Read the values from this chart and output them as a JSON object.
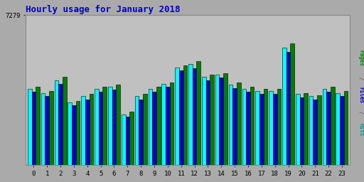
{
  "title": "Hourly usage for January 2018",
  "title_color": "#0000cc",
  "title_fontsize": 9,
  "hours": [
    0,
    1,
    2,
    3,
    4,
    5,
    6,
    7,
    8,
    9,
    10,
    11,
    12,
    13,
    14,
    15,
    16,
    17,
    18,
    19,
    20,
    21,
    22,
    23
  ],
  "hits": [
    3700,
    3500,
    4100,
    3050,
    3350,
    3700,
    3800,
    2450,
    3350,
    3700,
    3950,
    4750,
    4900,
    4300,
    4400,
    3900,
    3700,
    3600,
    3600,
    5700,
    3450,
    3350,
    3700,
    3500
  ],
  "files": [
    3550,
    3350,
    3950,
    2900,
    3200,
    3550,
    3650,
    2350,
    3200,
    3550,
    3800,
    4600,
    4700,
    4100,
    4250,
    3750,
    3550,
    3450,
    3450,
    5500,
    3300,
    3200,
    3550,
    3350
  ],
  "pages": [
    3800,
    3600,
    4300,
    3100,
    3450,
    3800,
    3900,
    2600,
    3450,
    3800,
    4000,
    4850,
    5050,
    4400,
    4450,
    4000,
    3800,
    3700,
    3700,
    5900,
    3500,
    3400,
    3800,
    3600
  ],
  "ymax": 7279,
  "ylabel_tick": "7279",
  "fig_bg": "#aaaaaa",
  "plot_bg": "#c0c0c0",
  "bar_color_hits": "#00ffff",
  "bar_color_files": "#0000cc",
  "bar_color_pages": "#008000",
  "bar_edge": "#000000"
}
